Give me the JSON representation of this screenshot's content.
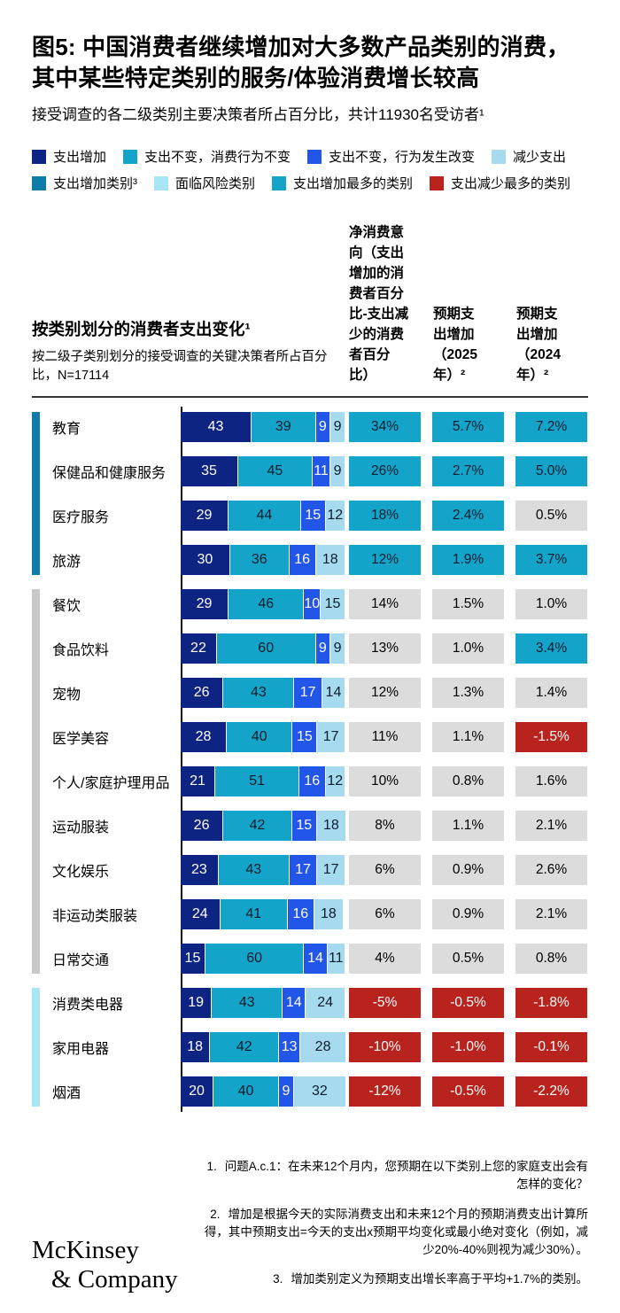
{
  "title": "图5: 中国消费者继续增加对大多数产品类别的消费，其中某些特定类别的服务/体验消费增长较高",
  "subtitle": "接受调查的各二级类别主要决策者所占百分比，共计11930名受访者¹",
  "colors": {
    "seg_navy": "#0e2483",
    "seg_teal": "#14a4ca",
    "seg_blue": "#2256e8",
    "seg_lightblue": "#a6dbef",
    "group_increase": "#0f7ba8",
    "group_neutral": "#c9c9c9",
    "group_risk": "#a8e6f7",
    "cell_teal": "#14a4ca",
    "cell_gray": "#dcdcdc",
    "cell_red": "#b9231e"
  },
  "legend": {
    "rows": [
      [
        {
          "label": "支出增加",
          "color": "#0e2483"
        },
        {
          "label": "支出不变，消费行为不变",
          "color": "#14a4ca"
        },
        {
          "label": "支出不变，行为发生改变",
          "color": "#2256e8"
        },
        {
          "label": "减少支出",
          "color": "#a6dbef"
        }
      ],
      [
        {
          "label": "支出增加类别³",
          "color": "#0f7ba8"
        },
        {
          "label": "面临风险类别",
          "color": "#a8e6f7"
        },
        {
          "label": "支出增加最多的类别",
          "color": "#14a4ca"
        },
        {
          "label": "支出减少最多的类别",
          "color": "#b9231e"
        }
      ]
    ]
  },
  "table_header": {
    "left_title": "按类别划分的消费者支出变化¹",
    "left_sub": "按二级子类别划分的接受调查的关键决策者所占百分比，N=17114",
    "col_net": "净消费意向（支出增加的消费者百分比-支出减少的消费者百分比）",
    "col_2025": "预期支出增加（2025年）²",
    "col_2024": "预期支出增加（2024年）²"
  },
  "chart_data": {
    "type": "bar",
    "orientation": "horizontal-stacked",
    "series_names": [
      "支出增加",
      "支出不变，消费行为不变",
      "支出不变，行为发生改变",
      "减少支出"
    ],
    "value_columns": [
      "净消费意向",
      "预期支出增加（2025年）",
      "预期支出增加（2024年）"
    ],
    "xlim": [
      0,
      100
    ],
    "groups": [
      {
        "indicator": "group_increase",
        "rows": [
          {
            "label": "教育",
            "segments": [
              43,
              39,
              9,
              9
            ],
            "cells": [
              {
                "v": "34%",
                "s": "teal"
              },
              {
                "v": "5.7%",
                "s": "teal"
              },
              {
                "v": "7.2%",
                "s": "teal"
              }
            ]
          },
          {
            "label": "保健品和健康服务",
            "segments": [
              35,
              45,
              11,
              9
            ],
            "cells": [
              {
                "v": "26%",
                "s": "teal"
              },
              {
                "v": "2.7%",
                "s": "teal"
              },
              {
                "v": "5.0%",
                "s": "teal"
              }
            ]
          },
          {
            "label": "医疗服务",
            "segments": [
              29,
              44,
              15,
              12
            ],
            "cells": [
              {
                "v": "18%",
                "s": "teal"
              },
              {
                "v": "2.4%",
                "s": "teal"
              },
              {
                "v": "0.5%",
                "s": "gray"
              }
            ]
          },
          {
            "label": "旅游",
            "segments": [
              30,
              36,
              16,
              18
            ],
            "cells": [
              {
                "v": "12%",
                "s": "teal"
              },
              {
                "v": "1.9%",
                "s": "teal"
              },
              {
                "v": "3.7%",
                "s": "teal"
              }
            ]
          }
        ]
      },
      {
        "indicator": "group_neutral",
        "rows": [
          {
            "label": "餐饮",
            "segments": [
              29,
              46,
              10,
              15
            ],
            "cells": [
              {
                "v": "14%",
                "s": "gray"
              },
              {
                "v": "1.5%",
                "s": "gray"
              },
              {
                "v": "1.0%",
                "s": "gray"
              }
            ]
          },
          {
            "label": "食品饮料",
            "segments": [
              22,
              60,
              9,
              9
            ],
            "cells": [
              {
                "v": "13%",
                "s": "gray"
              },
              {
                "v": "1.0%",
                "s": "gray"
              },
              {
                "v": "3.4%",
                "s": "teal"
              }
            ]
          },
          {
            "label": "宠物",
            "segments": [
              26,
              43,
              17,
              14
            ],
            "cells": [
              {
                "v": "12%",
                "s": "gray"
              },
              {
                "v": "1.3%",
                "s": "gray"
              },
              {
                "v": "1.4%",
                "s": "gray"
              }
            ]
          },
          {
            "label": "医学美容",
            "segments": [
              28,
              40,
              15,
              17
            ],
            "cells": [
              {
                "v": "11%",
                "s": "gray"
              },
              {
                "v": "1.1%",
                "s": "gray"
              },
              {
                "v": "-1.5%",
                "s": "red"
              }
            ]
          },
          {
            "label": "个人/家庭护理用品",
            "segments": [
              21,
              51,
              16,
              12
            ],
            "cells": [
              {
                "v": "10%",
                "s": "gray"
              },
              {
                "v": "0.8%",
                "s": "gray"
              },
              {
                "v": "1.6%",
                "s": "gray"
              }
            ]
          },
          {
            "label": "运动服装",
            "segments": [
              26,
              42,
              15,
              18
            ],
            "cells": [
              {
                "v": "8%",
                "s": "gray"
              },
              {
                "v": "1.1%",
                "s": "gray"
              },
              {
                "v": "2.1%",
                "s": "gray"
              }
            ]
          },
          {
            "label": "文化娱乐",
            "segments": [
              23,
              43,
              17,
              17
            ],
            "cells": [
              {
                "v": "6%",
                "s": "gray"
              },
              {
                "v": "0.9%",
                "s": "gray"
              },
              {
                "v": "2.6%",
                "s": "gray"
              }
            ]
          },
          {
            "label": "非运动类服装",
            "segments": [
              24,
              41,
              16,
              18
            ],
            "cells": [
              {
                "v": "6%",
                "s": "gray"
              },
              {
                "v": "0.9%",
                "s": "gray"
              },
              {
                "v": "2.1%",
                "s": "gray"
              }
            ]
          },
          {
            "label": "日常交通",
            "segments": [
              15,
              60,
              14,
              11
            ],
            "cells": [
              {
                "v": "4%",
                "s": "gray"
              },
              {
                "v": "0.5%",
                "s": "gray"
              },
              {
                "v": "0.8%",
                "s": "gray"
              }
            ]
          }
        ]
      },
      {
        "indicator": "group_risk",
        "rows": [
          {
            "label": "消费类电器",
            "segments": [
              19,
              43,
              14,
              24
            ],
            "cells": [
              {
                "v": "-5%",
                "s": "red"
              },
              {
                "v": "-0.5%",
                "s": "red"
              },
              {
                "v": "-1.8%",
                "s": "red"
              }
            ]
          },
          {
            "label": "家用电器",
            "segments": [
              18,
              42,
              13,
              28
            ],
            "cells": [
              {
                "v": "-10%",
                "s": "red"
              },
              {
                "v": "-1.0%",
                "s": "red"
              },
              {
                "v": "-0.1%",
                "s": "red"
              }
            ]
          },
          {
            "label": "烟酒",
            "segments": [
              20,
              40,
              9,
              32
            ],
            "cells": [
              {
                "v": "-12%",
                "s": "red"
              },
              {
                "v": "-0.5%",
                "s": "red"
              },
              {
                "v": "-2.2%",
                "s": "red"
              }
            ]
          }
        ]
      }
    ]
  },
  "footnotes": [
    "问题A.c.1：在未来12个月内，您预期在以下类别上您的家庭支出会有怎样的变化？",
    "增加是根据今天的实际消费支出和未来12个月的预期消费支出计算所得，其中预期支出=今天的支出x预期平均变化或最小绝对变化（例如，减少20%-40%则视为减少30%）。",
    "增加类别定义为预期支出增长率高于平均+1.7%的类别。"
  ],
  "logo": {
    "line1": "McKinsey",
    "line2": "& Company"
  }
}
